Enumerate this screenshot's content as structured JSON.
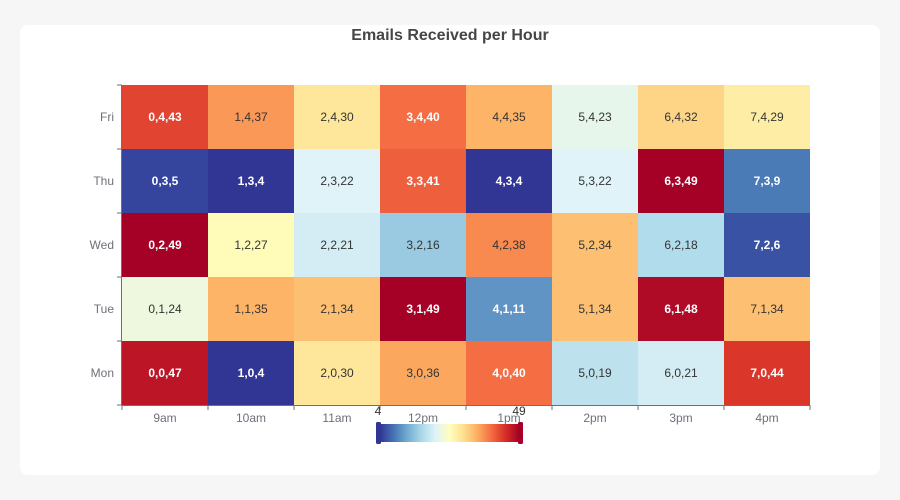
{
  "chart_data": {
    "type": "heatmap",
    "title": "Emails Received per Hour",
    "x_categories": [
      "9am",
      "10am",
      "11am",
      "12pm",
      "1pm",
      "2pm",
      "3pm",
      "4pm"
    ],
    "y_categories": [
      "Mon",
      "Tue",
      "Wed",
      "Thu",
      "Fri"
    ],
    "values": [
      [
        0,
        0,
        47
      ],
      [
        1,
        0,
        4
      ],
      [
        2,
        0,
        30
      ],
      [
        3,
        0,
        36
      ],
      [
        4,
        0,
        40
      ],
      [
        5,
        0,
        19
      ],
      [
        6,
        0,
        21
      ],
      [
        7,
        0,
        44
      ],
      [
        0,
        1,
        24
      ],
      [
        1,
        1,
        35
      ],
      [
        2,
        1,
        34
      ],
      [
        3,
        1,
        49
      ],
      [
        4,
        1,
        11
      ],
      [
        5,
        1,
        34
      ],
      [
        6,
        1,
        48
      ],
      [
        7,
        1,
        34
      ],
      [
        0,
        2,
        49
      ],
      [
        1,
        2,
        27
      ],
      [
        2,
        2,
        21
      ],
      [
        3,
        2,
        16
      ],
      [
        4,
        2,
        38
      ],
      [
        5,
        2,
        34
      ],
      [
        6,
        2,
        18
      ],
      [
        7,
        2,
        6
      ],
      [
        0,
        3,
        5
      ],
      [
        1,
        3,
        4
      ],
      [
        2,
        3,
        22
      ],
      [
        3,
        3,
        41
      ],
      [
        4,
        3,
        4
      ],
      [
        5,
        3,
        22
      ],
      [
        6,
        3,
        49
      ],
      [
        7,
        3,
        9
      ],
      [
        0,
        4,
        43
      ],
      [
        1,
        4,
        37
      ],
      [
        2,
        4,
        30
      ],
      [
        3,
        4,
        40
      ],
      [
        4,
        4,
        35
      ],
      [
        5,
        4,
        23
      ],
      [
        6,
        4,
        32
      ],
      [
        7,
        4,
        29
      ]
    ],
    "visual_map": {
      "min": 4,
      "max": 49,
      "min_label": "4",
      "max_label": "49",
      "colors": [
        "#313695",
        "#4575b4",
        "#74add1",
        "#abd9e9",
        "#e0f3f8",
        "#ffffbf",
        "#fee090",
        "#fdae61",
        "#f46d43",
        "#d73027",
        "#a50026"
      ]
    }
  }
}
